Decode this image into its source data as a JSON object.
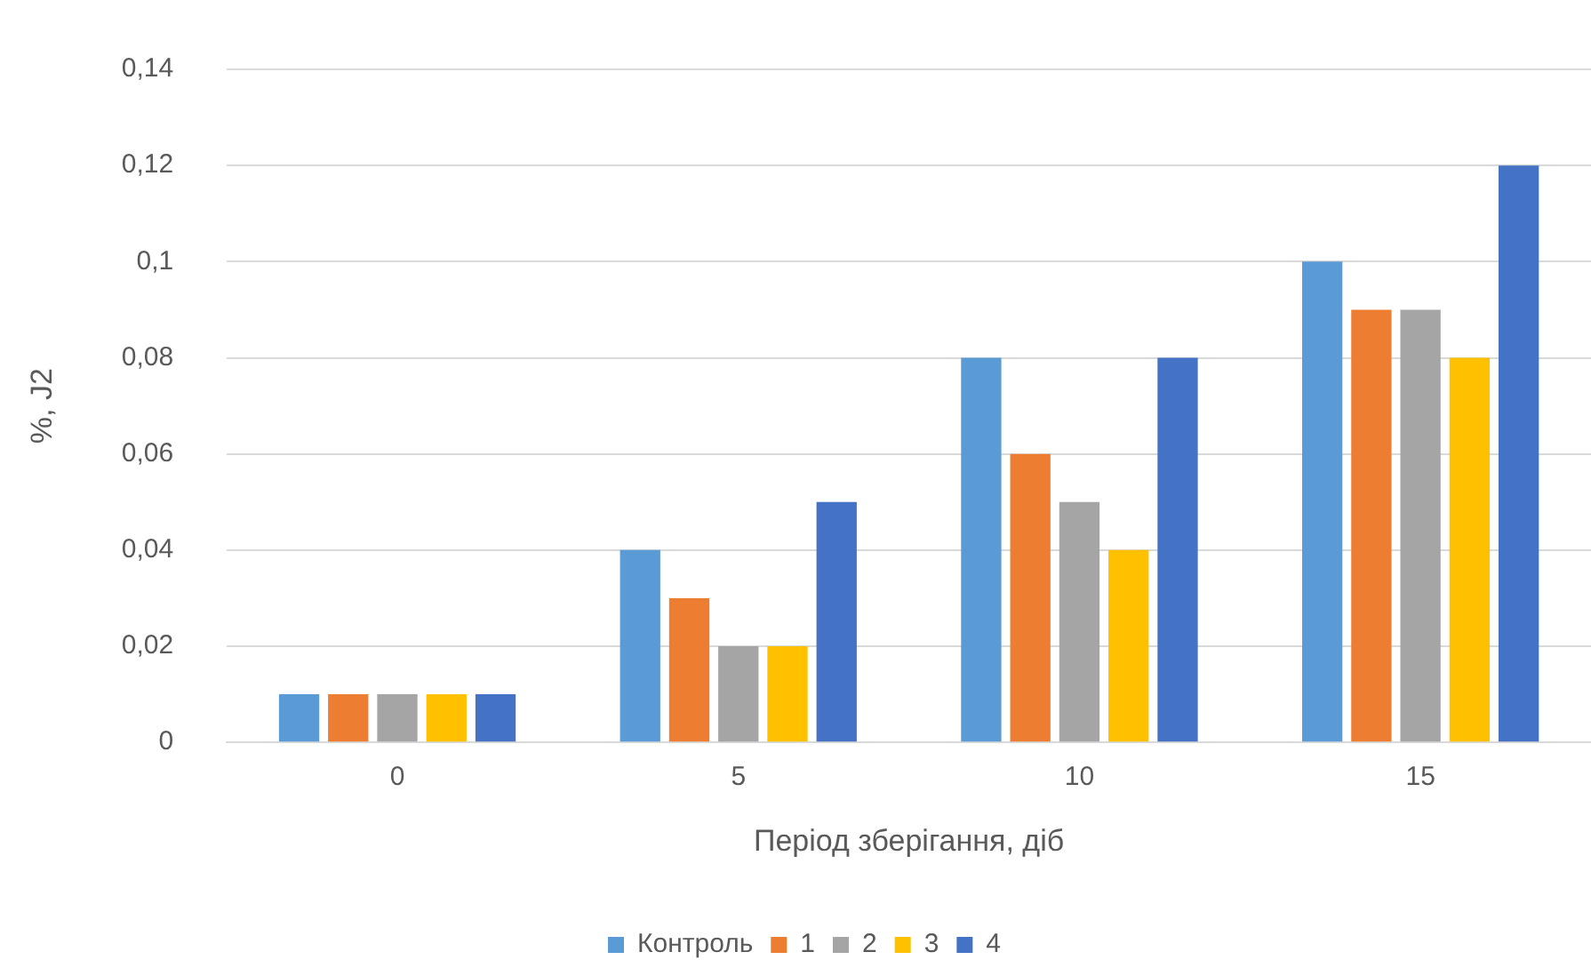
{
  "chart_data": {
    "type": "bar",
    "xlabel": "Період зберігання, діб",
    "ylabel": "%, J2",
    "categories": [
      "0",
      "5",
      "10",
      "15"
    ],
    "series": [
      {
        "name": "Контроль",
        "color": "#5b9bd5",
        "values": [
          0.01,
          0.04,
          0.08,
          0.1
        ]
      },
      {
        "name": "1",
        "color": "#ed7d31",
        "values": [
          0.01,
          0.03,
          0.06,
          0.09
        ]
      },
      {
        "name": "2",
        "color": "#a5a5a5",
        "values": [
          0.01,
          0.02,
          0.05,
          0.09
        ]
      },
      {
        "name": "3",
        "color": "#ffc000",
        "values": [
          0.01,
          0.02,
          0.04,
          0.08
        ]
      },
      {
        "name": "4",
        "color": "#4472c4",
        "values": [
          0.01,
          0.05,
          0.08,
          0.12
        ]
      }
    ],
    "ylim": [
      0,
      0.14
    ],
    "yticks": [
      {
        "value": 0,
        "label": "0"
      },
      {
        "value": 0.02,
        "label": "0,02"
      },
      {
        "value": 0.04,
        "label": "0,04"
      },
      {
        "value": 0.06,
        "label": "0,06"
      },
      {
        "value": 0.08,
        "label": "0,08"
      },
      {
        "value": 0.1,
        "label": "0,1"
      },
      {
        "value": 0.12,
        "label": "0,12"
      },
      {
        "value": 0.14,
        "label": "0,14"
      }
    ],
    "grid": "y",
    "legend": "bottom"
  }
}
